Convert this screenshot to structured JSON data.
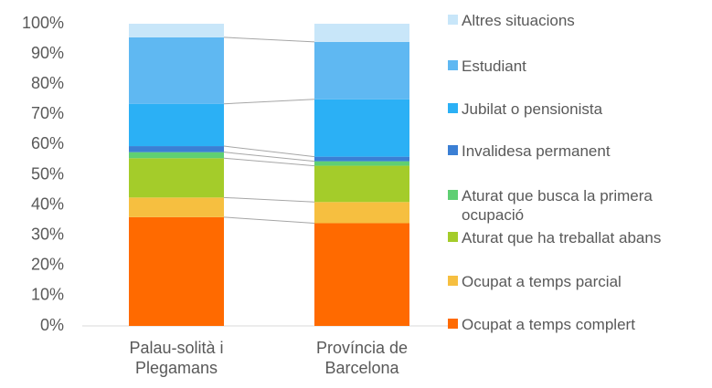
{
  "chart_data": {
    "type": "stacked_bar_100",
    "categories": [
      "Palau-solità i Plegamans",
      "Província de Barcelona"
    ],
    "series": [
      {
        "name": "Ocupat a temps complert",
        "color": "#ff6a00",
        "values": [
          36,
          34
        ]
      },
      {
        "name": "Ocupat a temps parcial",
        "color": "#f6bf40",
        "values": [
          6.5,
          7
        ]
      },
      {
        "name": "Aturat que ha treballat abans",
        "color": "#a4cc2a",
        "values": [
          13,
          12
        ]
      },
      {
        "name": "Aturat que busca la primera ocupació",
        "color": "#5fcf73",
        "values": [
          2,
          1.5
        ]
      },
      {
        "name": "Invalidesa permanent",
        "color": "#3b7fd4",
        "values": [
          2,
          1.5
        ]
      },
      {
        "name": "Jubilat o pensionista",
        "color": "#2bb0f5",
        "values": [
          14,
          19
        ]
      },
      {
        "name": "Estudiant",
        "color": "#5fb8f2",
        "values": [
          22,
          19
        ]
      },
      {
        "name": "Altres situacions",
        "color": "#c8e6f9",
        "values": [
          4.5,
          6
        ]
      }
    ],
    "ylim": [
      0,
      100
    ],
    "yticks": [
      {
        "value": 0,
        "label": "0%"
      },
      {
        "value": 10,
        "label": "10%"
      },
      {
        "value": 20,
        "label": "20%"
      },
      {
        "value": 30,
        "label": "30%"
      },
      {
        "value": 40,
        "label": "40%"
      },
      {
        "value": 50,
        "label": "50%"
      },
      {
        "value": 60,
        "label": "60%"
      },
      {
        "value": 70,
        "label": "70%"
      },
      {
        "value": 80,
        "label": "80%"
      },
      {
        "value": 90,
        "label": "90%"
      },
      {
        "value": 100,
        "label": "100%"
      }
    ],
    "series_lines": true,
    "legend": "right"
  }
}
